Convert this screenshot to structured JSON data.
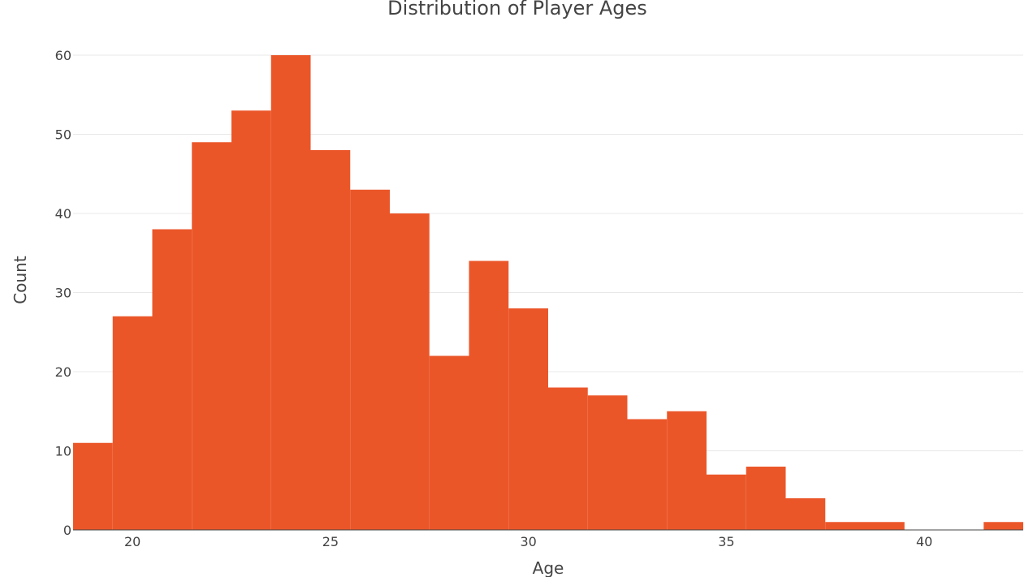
{
  "chart_data": {
    "type": "bar",
    "title": "Distribution of Player Ages",
    "xlabel": "Age",
    "ylabel": "Count",
    "bar_color": "#EB5629",
    "bins": [
      {
        "start": 18.5,
        "end": 19.5,
        "count": 11
      },
      {
        "start": 19.5,
        "end": 20.5,
        "count": 27
      },
      {
        "start": 20.5,
        "end": 21.5,
        "count": 38
      },
      {
        "start": 21.5,
        "end": 22.5,
        "count": 49
      },
      {
        "start": 22.5,
        "end": 23.5,
        "count": 53
      },
      {
        "start": 23.5,
        "end": 24.5,
        "count": 60
      },
      {
        "start": 24.5,
        "end": 25.5,
        "count": 48
      },
      {
        "start": 25.5,
        "end": 26.5,
        "count": 43
      },
      {
        "start": 26.5,
        "end": 27.5,
        "count": 40
      },
      {
        "start": 27.5,
        "end": 28.5,
        "count": 22
      },
      {
        "start": 28.5,
        "end": 29.5,
        "count": 34
      },
      {
        "start": 29.5,
        "end": 30.5,
        "count": 28
      },
      {
        "start": 30.5,
        "end": 31.5,
        "count": 18
      },
      {
        "start": 31.5,
        "end": 32.5,
        "count": 17
      },
      {
        "start": 32.5,
        "end": 33.5,
        "count": 14
      },
      {
        "start": 33.5,
        "end": 34.5,
        "count": 15
      },
      {
        "start": 34.5,
        "end": 35.5,
        "count": 7
      },
      {
        "start": 35.5,
        "end": 36.5,
        "count": 8
      },
      {
        "start": 36.5,
        "end": 37.5,
        "count": 4
      },
      {
        "start": 37.5,
        "end": 38.5,
        "count": 1
      },
      {
        "start": 38.5,
        "end": 39.5,
        "count": 1
      },
      {
        "start": 39.5,
        "end": 40.5,
        "count": 0
      },
      {
        "start": 40.5,
        "end": 41.5,
        "count": 0
      },
      {
        "start": 41.5,
        "end": 42.5,
        "count": 1
      }
    ],
    "xlim": [
      18.5,
      42.5
    ],
    "ylim": [
      0,
      60
    ],
    "x_ticks": [
      20,
      25,
      30,
      35,
      40
    ],
    "y_ticks": [
      0,
      10,
      20,
      30,
      40,
      50,
      60
    ],
    "grid": true,
    "legend": "none"
  }
}
